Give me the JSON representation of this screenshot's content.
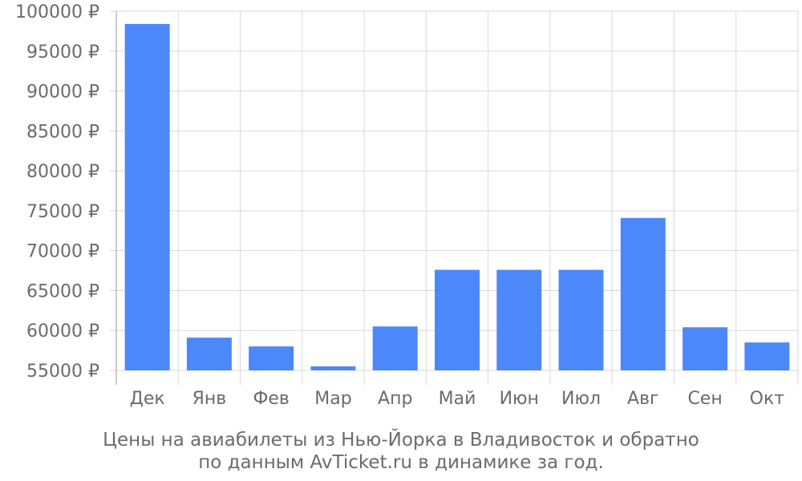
{
  "chart_data": {
    "type": "bar",
    "categories": [
      "Дек",
      "Янв",
      "Фев",
      "Мар",
      "Апр",
      "Май",
      "Июн",
      "Июл",
      "Авг",
      "Сен",
      "Окт"
    ],
    "values": [
      98400,
      59100,
      58000,
      55500,
      60500,
      67600,
      67600,
      67600,
      74100,
      60400,
      58500
    ],
    "ylim": [
      55000,
      100000
    ],
    "yticks": [
      55000,
      60000,
      65000,
      70000,
      75000,
      80000,
      85000,
      90000,
      95000,
      100000
    ],
    "ytick_labels": [
      "55000 ₽",
      "60000 ₽",
      "65000 ₽",
      "70000 ₽",
      "75000 ₽",
      "80000 ₽",
      "85000 ₽",
      "90000 ₽",
      "95000 ₽",
      "100000 ₽"
    ],
    "caption_lines": [
      "Цены на авиабилеты из Нью-Йорка в Владивосток и обратно",
      "по данным AvTicket.ru в динамике за год."
    ],
    "grid": true,
    "bar_color": "#4d88fb"
  }
}
